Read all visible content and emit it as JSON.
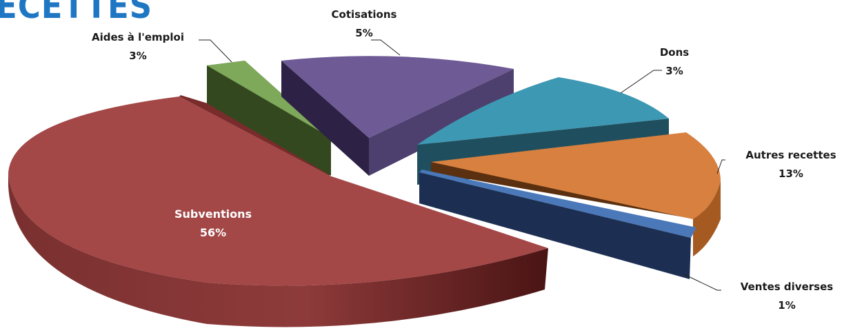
{
  "page": {
    "title_fragment": "ECETTES"
  },
  "chart_data": {
    "type": "pie",
    "style": "3d-exploded",
    "categories": [
      "Subventions",
      "Aides à l'emploi",
      "Cotisations",
      "Dons",
      "Autres recettes",
      "Ventes diverses"
    ],
    "values": [
      56,
      3,
      5,
      3,
      13,
      1
    ],
    "value_labels": [
      "56%",
      "3%",
      "5%",
      "3%",
      "13%",
      "1%"
    ],
    "colors": [
      "#a04848",
      "#7ca95a",
      "#6e5a94",
      "#3d98b2",
      "#d98040",
      "#4a78b8"
    ],
    "legend": "none",
    "labels_position": "outside-with-leaders"
  }
}
